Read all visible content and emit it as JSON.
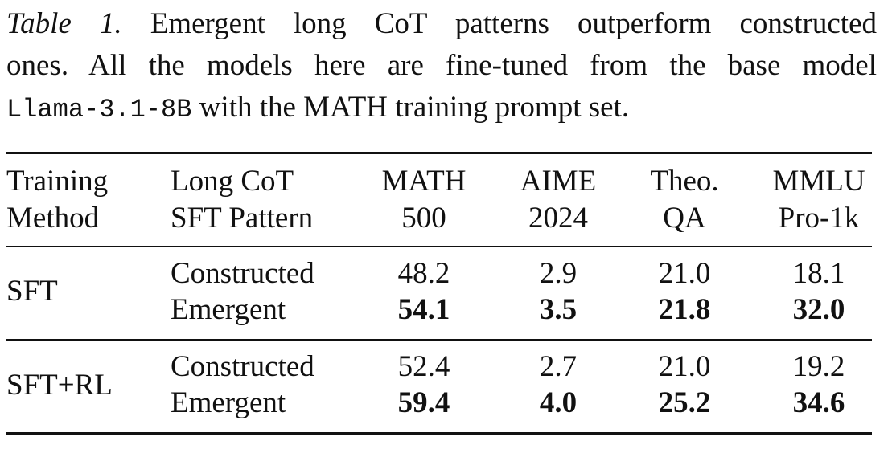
{
  "caption": {
    "label": "Table 1.",
    "text_line1": "Emergent long CoT patterns outperform constructed",
    "text_line2": "ones. All the models here are fine-tuned from the base model",
    "model_code": "Llama-3.1-8B",
    "text_line3": "with the MATH training prompt set."
  },
  "table": {
    "headers": {
      "method_line1": "Training",
      "method_line2": "Method",
      "pattern_line1": "Long CoT",
      "pattern_line2": "SFT Pattern",
      "math_line1": "MATH",
      "math_line2": "500",
      "aime_line1": "AIME",
      "aime_line2": "2024",
      "theo_line1": "Theo.",
      "theo_line2": "QA",
      "mmlu_line1": "MMLU",
      "mmlu_line2": "Pro-1k"
    },
    "groups": [
      {
        "method": "SFT",
        "rows": [
          {
            "pattern": "Constructed",
            "math": "48.2",
            "aime": "2.9",
            "theo": "21.0",
            "mmlu": "18.1"
          },
          {
            "pattern": "Emergent",
            "math": "54.1",
            "aime": "3.5",
            "theo": "21.8",
            "mmlu": "32.0"
          }
        ]
      },
      {
        "method": "SFT+RL",
        "rows": [
          {
            "pattern": "Constructed",
            "math": "52.4",
            "aime": "2.7",
            "theo": "21.0",
            "mmlu": "19.2"
          },
          {
            "pattern": "Emergent",
            "math": "59.4",
            "aime": "4.0",
            "theo": "25.2",
            "mmlu": "34.6"
          }
        ]
      }
    ]
  }
}
